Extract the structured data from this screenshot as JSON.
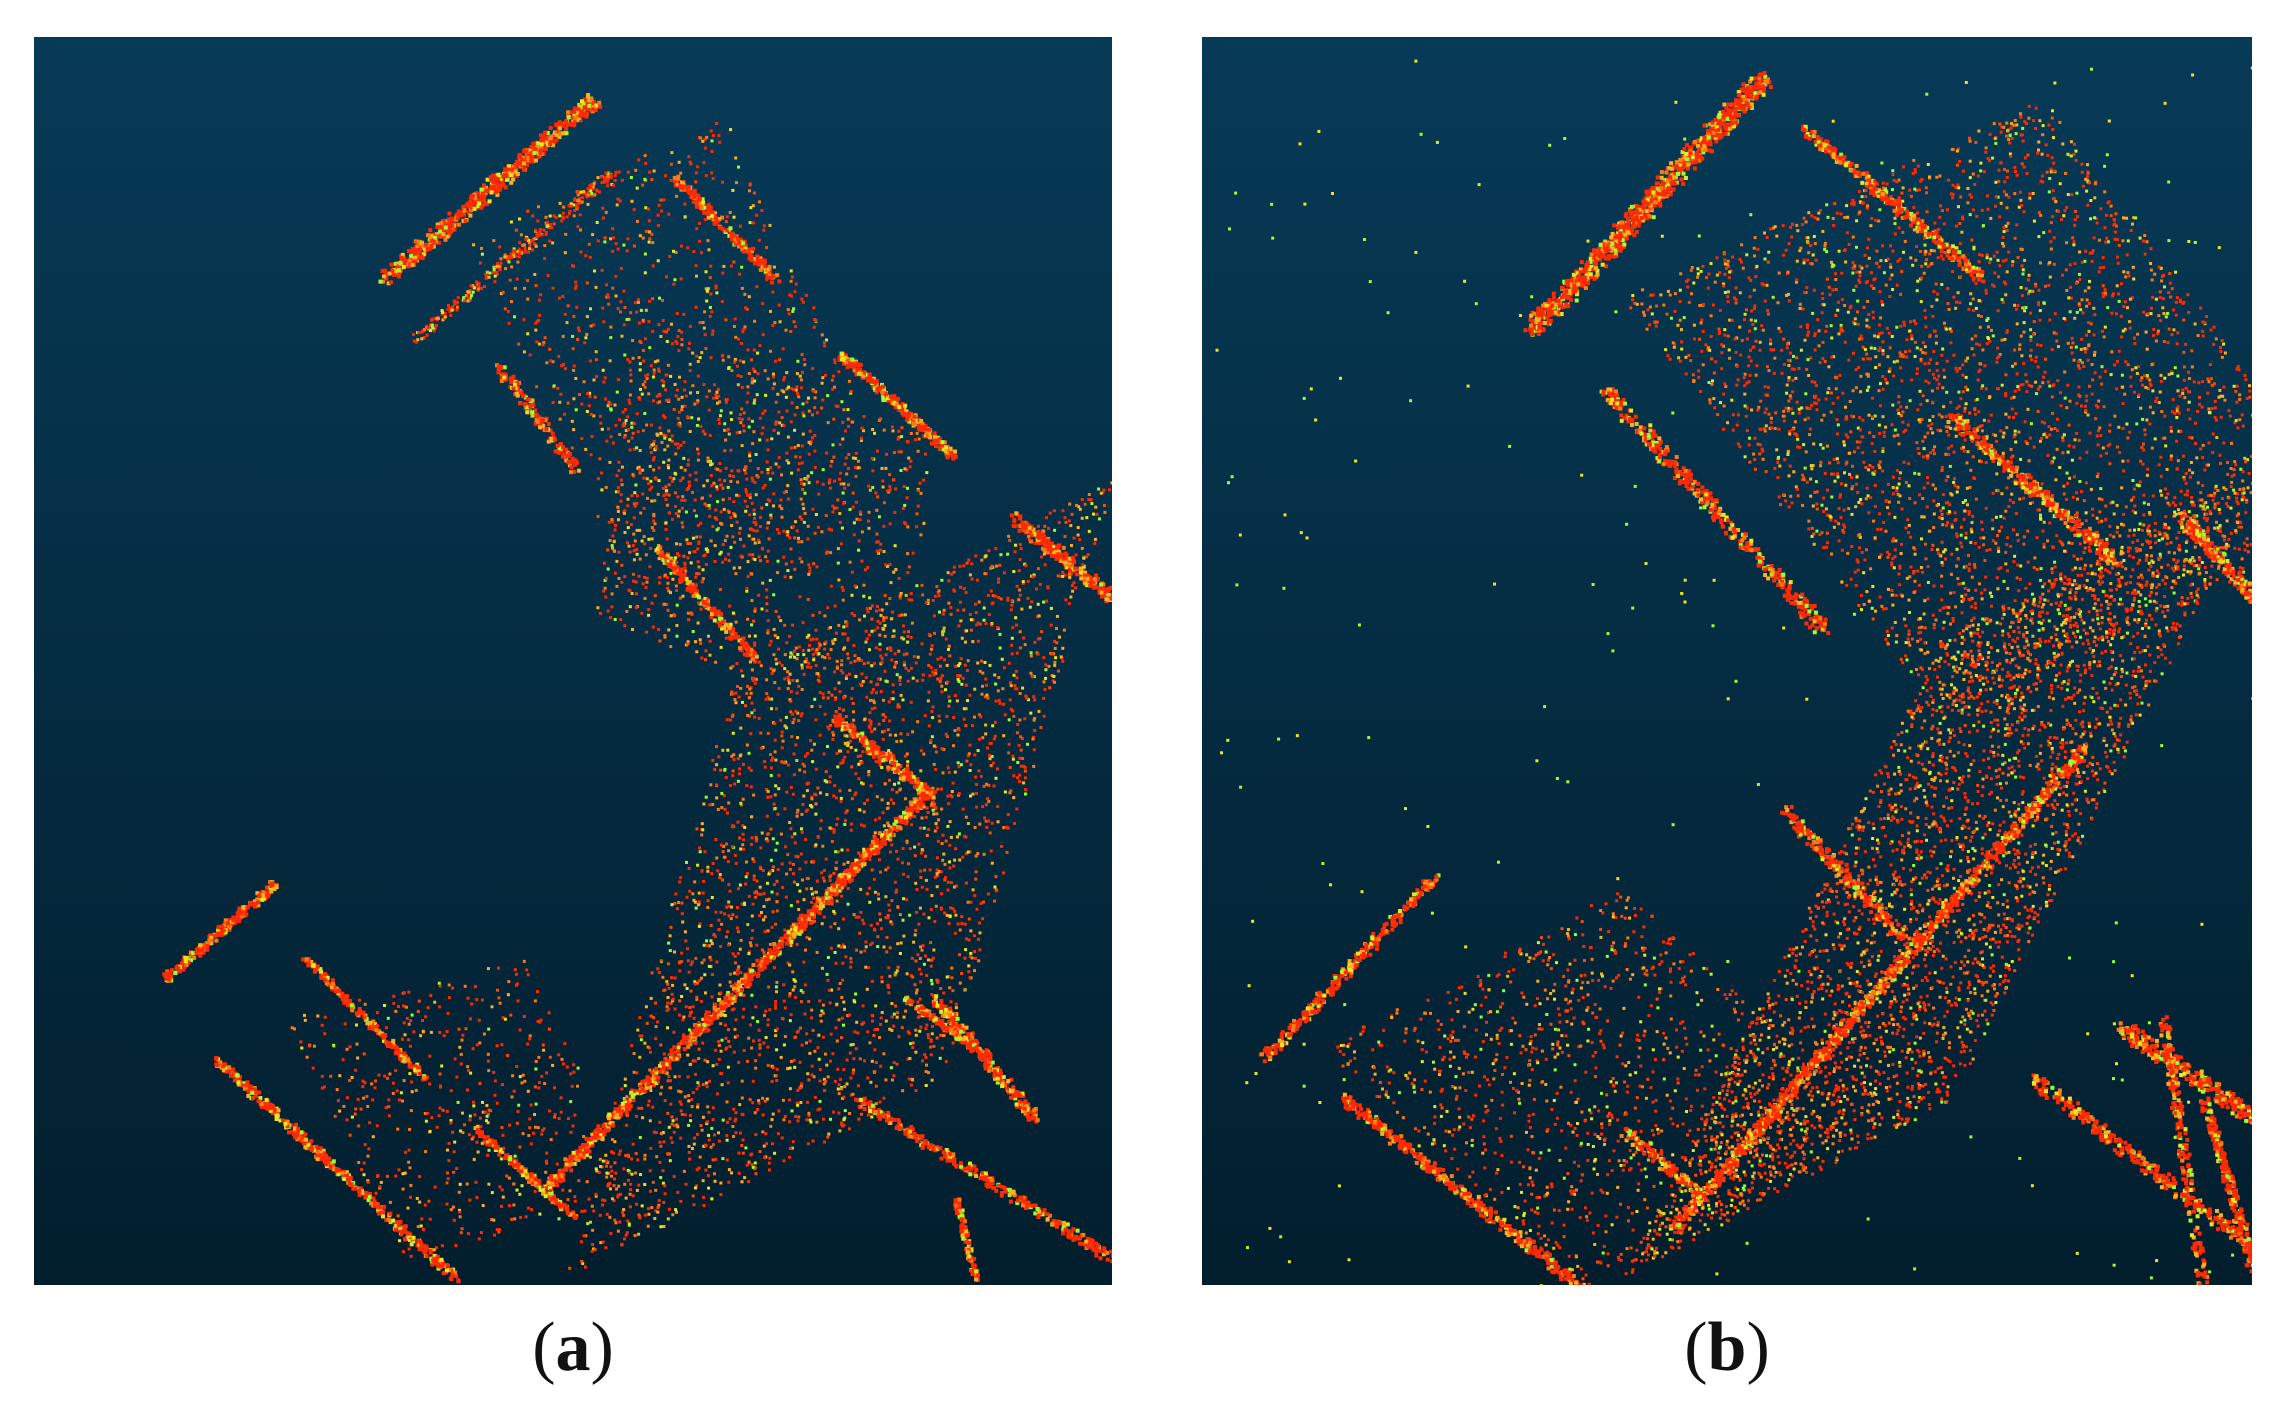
{
  "figure": {
    "panels": [
      {
        "id": "a",
        "paren_open": "(",
        "letter": "a",
        "paren_close": ")",
        "background_top": "#073a57",
        "background_bottom": "#021e2d"
      },
      {
        "id": "b",
        "paren_open": "(",
        "letter": "b",
        "paren_close": ")",
        "background_top": "#073a57",
        "background_bottom": "#021e2d"
      }
    ],
    "point_colors": [
      "#ff2a00",
      "#ff4a00",
      "#ff7a10",
      "#ffb020",
      "#e8e820",
      "#9aff30"
    ]
  }
}
